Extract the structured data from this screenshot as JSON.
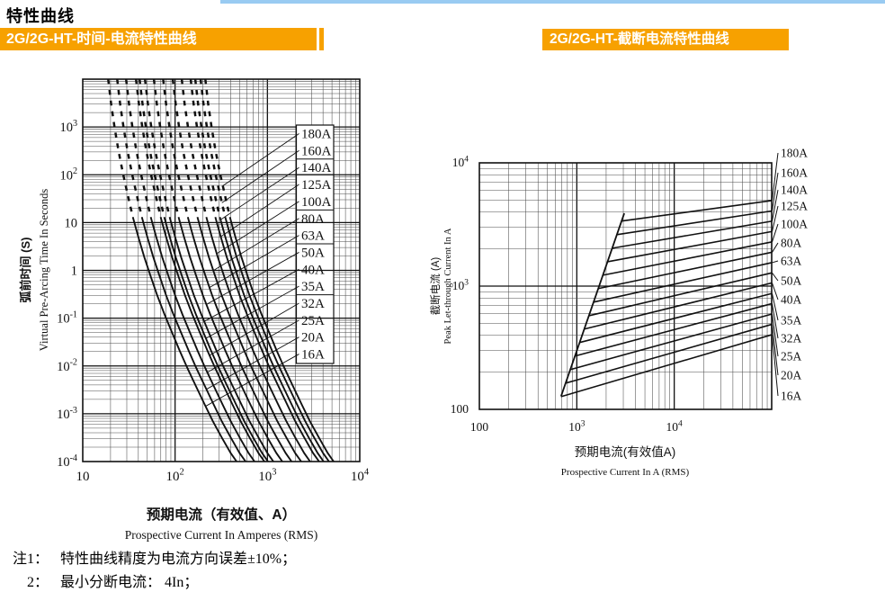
{
  "page": {
    "title": "特性曲线",
    "notes": [
      {
        "label": "注1：",
        "text": "特性曲线精度为电流方向误差±10%；"
      },
      {
        "label": "2：",
        "text": "最小分断电流：  4In；"
      }
    ]
  },
  "chart_data": [
    {
      "type": "line",
      "name": "time-current-characteristic",
      "title": "2G/2G-HT-时间-电流特性曲线",
      "xlabel_cn": "预期电流（有效值、A）",
      "xlabel_en": "Prospective Current In Amperes (RMS)",
      "ylabel_cn": "弧前时间 (S)",
      "ylabel_en": "Virtual Pre-Arcing Time In Seconds",
      "xlim": [
        10,
        10000
      ],
      "ylim": [
        0.0001,
        10000
      ],
      "grid": "log-log minor+major",
      "x_ticks": [
        {
          "t": "10",
          "e": 1
        },
        {
          "t": "10",
          "s": "2",
          "e": 2
        },
        {
          "t": "10",
          "s": "3",
          "e": 3
        },
        {
          "t": "10",
          "s": "4",
          "e": 4
        }
      ],
      "y_ticks": [
        {
          "t": "10",
          "s": "3",
          "e": 3
        },
        {
          "t": "10",
          "s": "2",
          "e": 2
        },
        {
          "t": "10",
          "e": 1
        },
        {
          "t": "1",
          "e": 0
        },
        {
          "t": "10",
          "s": "-1",
          "e": -1
        },
        {
          "t": "10",
          "s": "-2",
          "e": -2
        },
        {
          "t": "10",
          "s": "-3",
          "e": -3
        },
        {
          "t": "10",
          "s": "-4",
          "e": -4
        }
      ],
      "ratings_amps": [
        180,
        160,
        140,
        125,
        100,
        80,
        63,
        50,
        40,
        35,
        32,
        25,
        20,
        16
      ],
      "rating_labels": [
        "180A",
        "160A",
        "140A",
        "125A",
        "100A",
        "80A",
        "63A",
        "50A",
        "40A",
        "35A",
        "32A",
        "25A",
        "20A",
        "16A"
      ],
      "legend_separators_after": [
        1,
        4,
        6,
        9
      ],
      "curve_template": {
        "comment": "shared pre-arcing curve shape: current as multiple of rated In vs time in seconds; dashed above dash_below_time",
        "dash_below_time": 15,
        "multiple_of_In": [
          1.18,
          1.27,
          1.38,
          1.52,
          1.7,
          1.92,
          2.18,
          2.5,
          2.9,
          3.4,
          4.0,
          4.8,
          5.8,
          7.0,
          8.5,
          10.5,
          13,
          16,
          20,
          25,
          29
        ],
        "time_s": [
          10000,
          3000,
          1000,
          330,
          110,
          38,
          13,
          5,
          1.9,
          0.75,
          0.3,
          0.12,
          0.05,
          0.021,
          0.009,
          0.0038,
          0.0016,
          0.0007,
          0.00032,
          0.00015,
          0.0001
        ]
      }
    },
    {
      "type": "line",
      "name": "cutoff-current-characteristic",
      "title": "2G/2G-HT-截断电流特性曲线",
      "xlabel_cn": "预期电流(有效值A)",
      "xlabel_en": "Prospective Current In A (RMS)",
      "ylabel_cn": "截断电流 (A)",
      "ylabel_en": "Peak Let-through Current In A",
      "xlim": [
        100,
        100000
      ],
      "ylim": [
        100,
        10000
      ],
      "grid": "log-log minor+major",
      "x_ticks": [
        {
          "t": "100",
          "e": 2
        },
        {
          "t": "10",
          "s": "3",
          "e": 3
        },
        {
          "t": "10",
          "s": "4",
          "e": 4
        }
      ],
      "y_ticks": [
        {
          "t": "10",
          "s": "4",
          "e": 4
        },
        {
          "t": "10",
          "s": "3",
          "e": 3
        },
        {
          "t": "100",
          "e": 2
        }
      ],
      "rating_labels": [
        "180A",
        "160A",
        "140A",
        "125A",
        "100A",
        "80A",
        "63A",
        "50A",
        "40A",
        "35A",
        "32A",
        "25A",
        "20A",
        "16A"
      ],
      "steep_line": {
        "comment": "prospective peak line, RMS A vs peak A",
        "x": [
          690,
          3070
        ],
        "y": [
          128,
          3900
        ]
      },
      "fan_lines": {
        "comment": "one line per rating: departs steep line at start_x (A RMS), reaches right edge at end_peak (A)",
        "x_end": 100000,
        "start_x": [
          2880,
          2578,
          2308,
          2066,
          1852,
          1660,
          1486,
          1330,
          1193,
          1069,
          957,
          857,
          767,
          687
        ],
        "end_peak": [
          4940,
          4070,
          3360,
          2770,
          2280,
          1880,
          1550,
          1280,
          1060,
          870,
          720,
          593,
          489,
          403
        ]
      }
    }
  ],
  "colors": {
    "banner_orange": "#F7A100",
    "top_line_blue": "#99CBF2",
    "ink": "#111111",
    "grid_minor": "#4d4d4d"
  }
}
